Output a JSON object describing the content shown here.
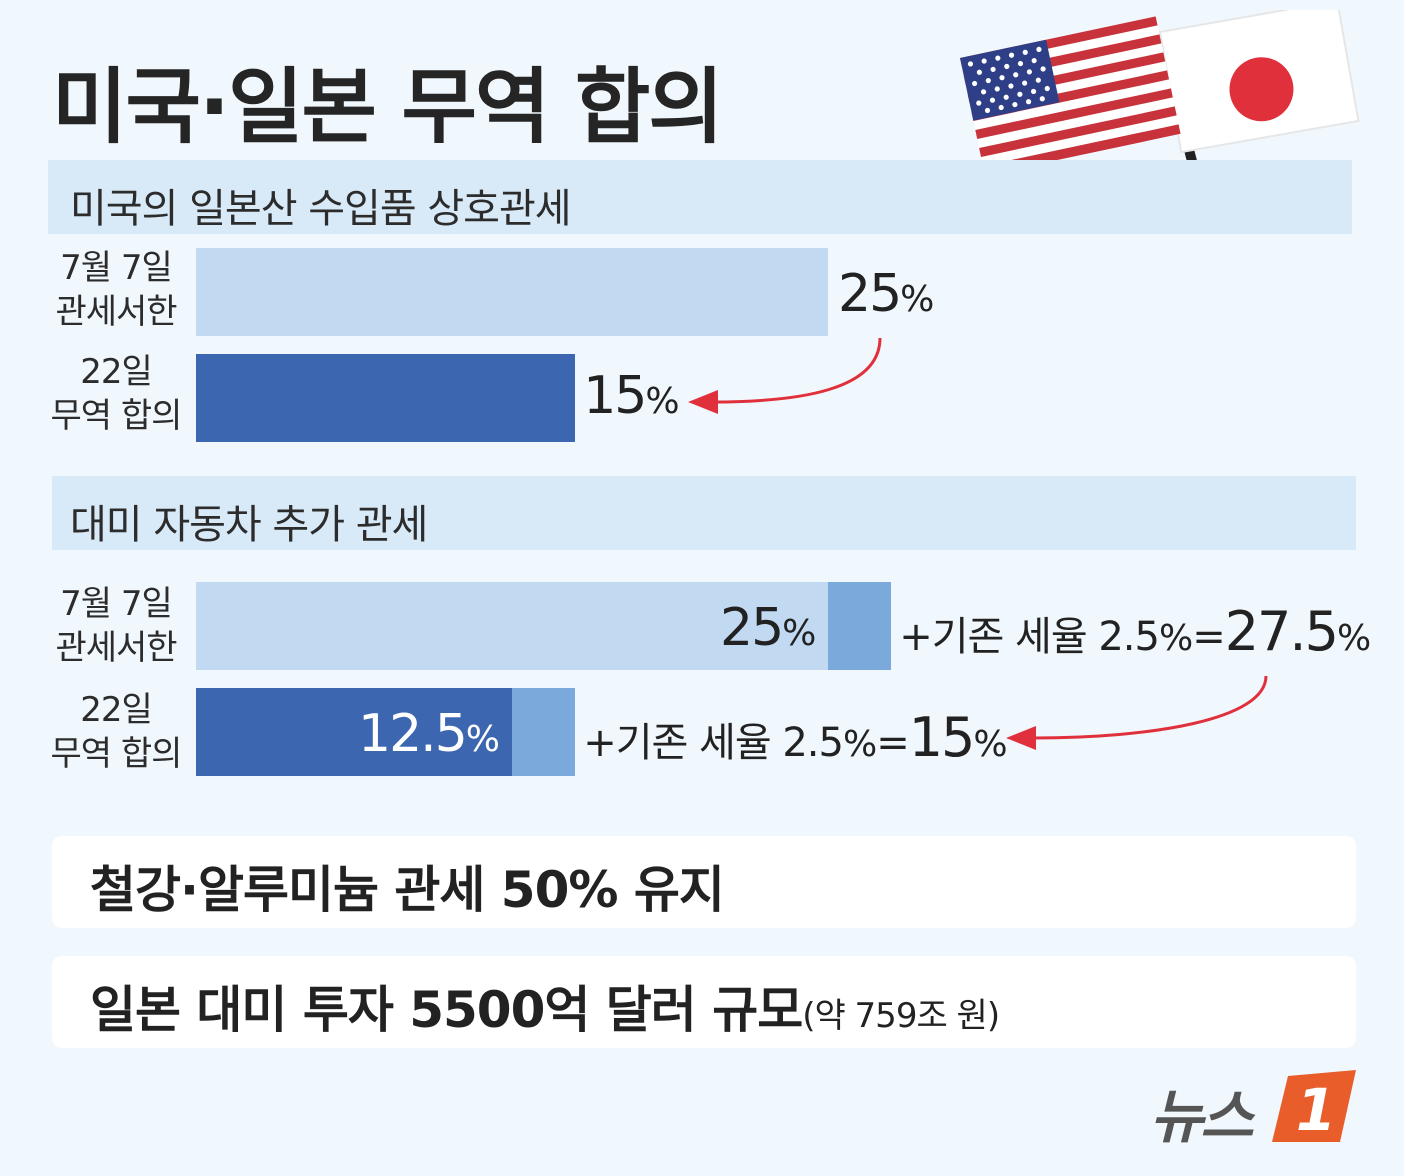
{
  "title": "미국·일본 무역 합의",
  "colors": {
    "bar_light": "#c1daf2",
    "bar_dark": "#3d66b0",
    "bar_extra": "#7ca9dc",
    "arrow": "#e0303c",
    "band": "#d8eaf8"
  },
  "chart_data": [
    {
      "type": "bar",
      "title": "미국의 일본산 수입품 상호관세",
      "unit": "%",
      "categories": [
        [
          "7월 7일",
          "관세서한"
        ],
        [
          "22일",
          "무역 합의"
        ]
      ],
      "values": [
        25,
        15
      ],
      "value_labels": [
        "25",
        "15"
      ],
      "xlim": [
        0,
        25
      ]
    },
    {
      "type": "bar",
      "stacked": true,
      "title": "대미 자동차 추가 관세",
      "unit": "%",
      "categories": [
        [
          "7월 7일",
          "관세서한"
        ],
        [
          "22일",
          "무역 합의"
        ]
      ],
      "series": [
        {
          "values": [
            25,
            12.5
          ],
          "value_labels": [
            "25",
            "12.5"
          ]
        },
        {
          "values": [
            2.5,
            2.5
          ]
        }
      ],
      "annotations": [
        {
          "prefix": "+기존 세율 ",
          "base": "2.5",
          "eq": "=",
          "total": "27.5"
        },
        {
          "prefix": "+기존 세율 ",
          "base": "2.5",
          "eq": "=",
          "total": "15"
        }
      ]
    }
  ],
  "facts": [
    {
      "text": "철강·알루미늄 관세 50% 유지",
      "note": ""
    },
    {
      "text": "일본 대미 투자 5500억 달러 규모",
      "note": "(약 759조 원)"
    }
  ],
  "logo": {
    "text": "뉴스",
    "mark": "1"
  }
}
